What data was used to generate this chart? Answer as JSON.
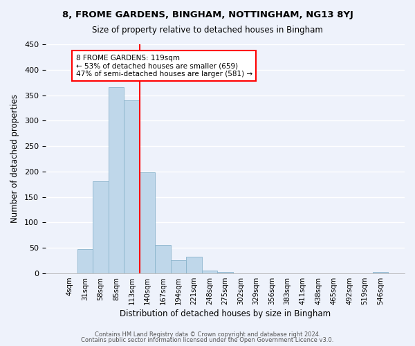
{
  "title": "8, FROME GARDENS, BINGHAM, NOTTINGHAM, NG13 8YJ",
  "subtitle": "Size of property relative to detached houses in Bingham",
  "xlabel": "Distribution of detached houses by size in Bingham",
  "ylabel": "Number of detached properties",
  "bar_labels": [
    "4sqm",
    "31sqm",
    "58sqm",
    "85sqm",
    "113sqm",
    "140sqm",
    "167sqm",
    "194sqm",
    "221sqm",
    "248sqm",
    "275sqm",
    "302sqm",
    "329sqm",
    "356sqm",
    "383sqm",
    "411sqm",
    "438sqm",
    "465sqm",
    "492sqm",
    "519sqm",
    "546sqm"
  ],
  "bar_heights": [
    0,
    47,
    181,
    365,
    340,
    199,
    55,
    26,
    33,
    5,
    2,
    0,
    0,
    0,
    0,
    0,
    0,
    0,
    0,
    0,
    2
  ],
  "bar_color": "#bfd7ea",
  "vline_x": 4.5,
  "vline_color": "red",
  "annotation_line1": "8 FROME GARDENS: 119sqm",
  "annotation_line2": "← 53% of detached houses are smaller (659)",
  "annotation_line3": "47% of semi-detached houses are larger (581) →",
  "ylim": [
    0,
    450
  ],
  "yticks": [
    0,
    50,
    100,
    150,
    200,
    250,
    300,
    350,
    400,
    450
  ],
  "footer1": "Contains HM Land Registry data © Crown copyright and database right 2024.",
  "footer2": "Contains public sector information licensed under the Open Government Licence v3.0.",
  "background_color": "#eef2fb"
}
